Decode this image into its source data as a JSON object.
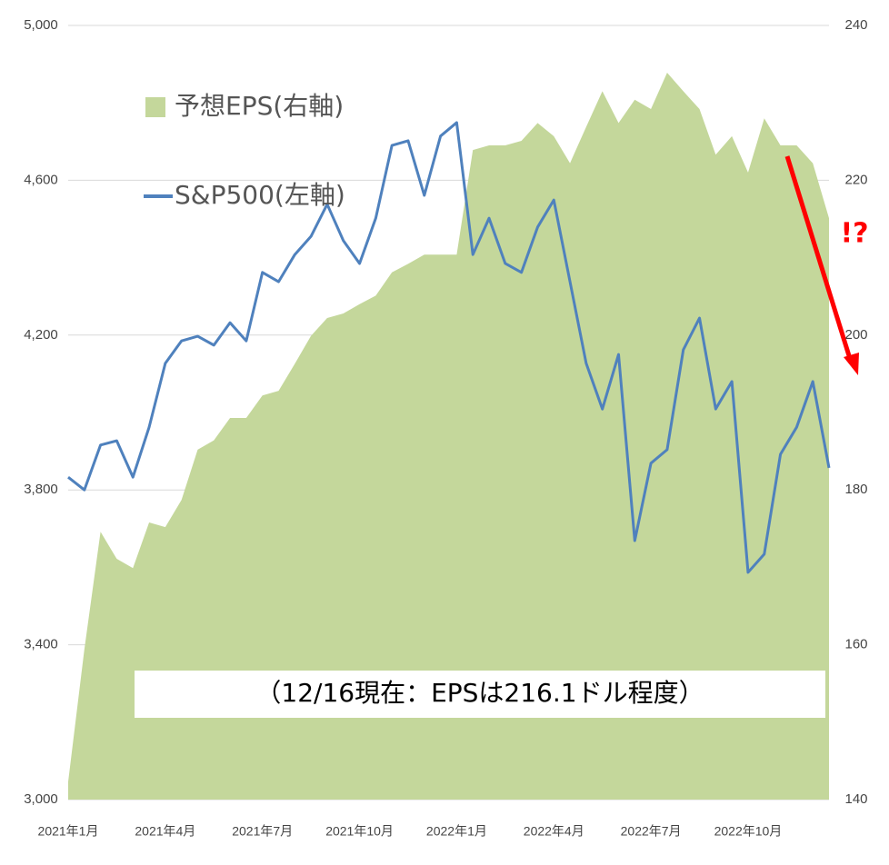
{
  "chart_data": {
    "type": "line",
    "categories": [
      "2021年1月",
      null,
      null,
      null,
      null,
      null,
      "2021年4月",
      null,
      null,
      null,
      null,
      null,
      "2021年7月",
      null,
      null,
      null,
      null,
      null,
      "2021年10月",
      null,
      null,
      null,
      null,
      null,
      "2022年1月",
      null,
      null,
      null,
      null,
      null,
      "2022年4月",
      null,
      null,
      null,
      null,
      null,
      "2022年7月",
      null,
      null,
      null,
      null,
      null,
      "2022年10月",
      null,
      null,
      null,
      null,
      null
    ],
    "series": [
      {
        "name": "予想EPS(右軸)",
        "style": "area",
        "axis": "y2",
        "color": "#c4d79b",
        "values": [
          142.3,
          159.4,
          174.6,
          171.1,
          169.9,
          175.8,
          175.2,
          178.7,
          185.2,
          186.4,
          189.3,
          189.3,
          192.2,
          192.8,
          196.3,
          199.9,
          202.2,
          202.8,
          204.0,
          205.1,
          208.1,
          209.2,
          210.4,
          210.4,
          210.4,
          223.9,
          224.5,
          224.5,
          225.1,
          227.4,
          225.7,
          222.2,
          226.9,
          231.5,
          227.4,
          230.4,
          229.2,
          233.9,
          231.5,
          229.2,
          223.3,
          225.7,
          221.0,
          228.0,
          224.5,
          224.5,
          222.2,
          215.1
        ]
      },
      {
        "name": "S&P500(左軸)",
        "style": "line",
        "axis": "y",
        "color": "#4f81bd",
        "values": [
          3833,
          3800,
          3916,
          3927,
          3833,
          3962,
          4127,
          4185,
          4197,
          4174,
          4232,
          4185,
          4362,
          4338,
          4408,
          4455,
          4538,
          4444,
          4385,
          4502,
          4690,
          4702,
          4561,
          4714,
          4749,
          4408,
          4502,
          4385,
          4362,
          4479,
          4549,
          4338,
          4127,
          4009,
          4150,
          3669,
          3869,
          3904,
          4162,
          4244,
          4009,
          4080,
          3587,
          3634,
          3892,
          3962,
          4080,
          3857
        ]
      }
    ],
    "ylim": [
      3000,
      5000
    ],
    "yticks": [
      {
        "value": 3000,
        "label": "3,000"
      },
      {
        "value": 3400,
        "label": "3,400"
      },
      {
        "value": 3800,
        "label": "3,800"
      },
      {
        "value": 4200,
        "label": "4,200"
      },
      {
        "value": 4600,
        "label": "4,600"
      },
      {
        "value": 5000,
        "label": "5,000"
      }
    ],
    "y2lim": [
      140,
      240
    ],
    "y2ticks": [
      140,
      160,
      180,
      200,
      220,
      240
    ],
    "grid": true,
    "legend": "upper left",
    "annotations": [
      "（12/16現在：EPSは216.1ドル程度）",
      "!?"
    ]
  }
}
